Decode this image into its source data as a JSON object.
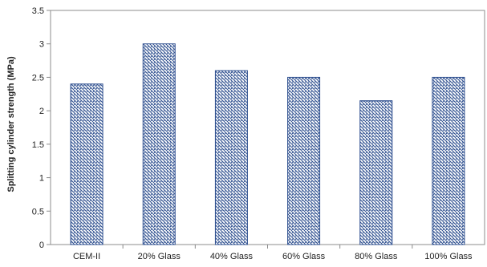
{
  "chart_data": {
    "type": "bar",
    "title": "",
    "xlabel": "",
    "ylabel": "Splitting cylinder strength (MPa)",
    "categories": [
      "CEM-II",
      "20% Glass",
      "40% Glass",
      "60% Glass",
      "80% Glass",
      "100% Glass"
    ],
    "values": [
      2.4,
      3.0,
      2.6,
      2.5,
      2.15,
      2.5
    ],
    "ylim": [
      0,
      3.5
    ],
    "yticks": [
      "0",
      "0.5",
      "1",
      "1.5",
      "2",
      "2.5",
      "3",
      "3.5"
    ],
    "grid": false,
    "legend": "none",
    "bar_color": "#2e4f8f",
    "bar_fill": "diagonal-hatch"
  }
}
